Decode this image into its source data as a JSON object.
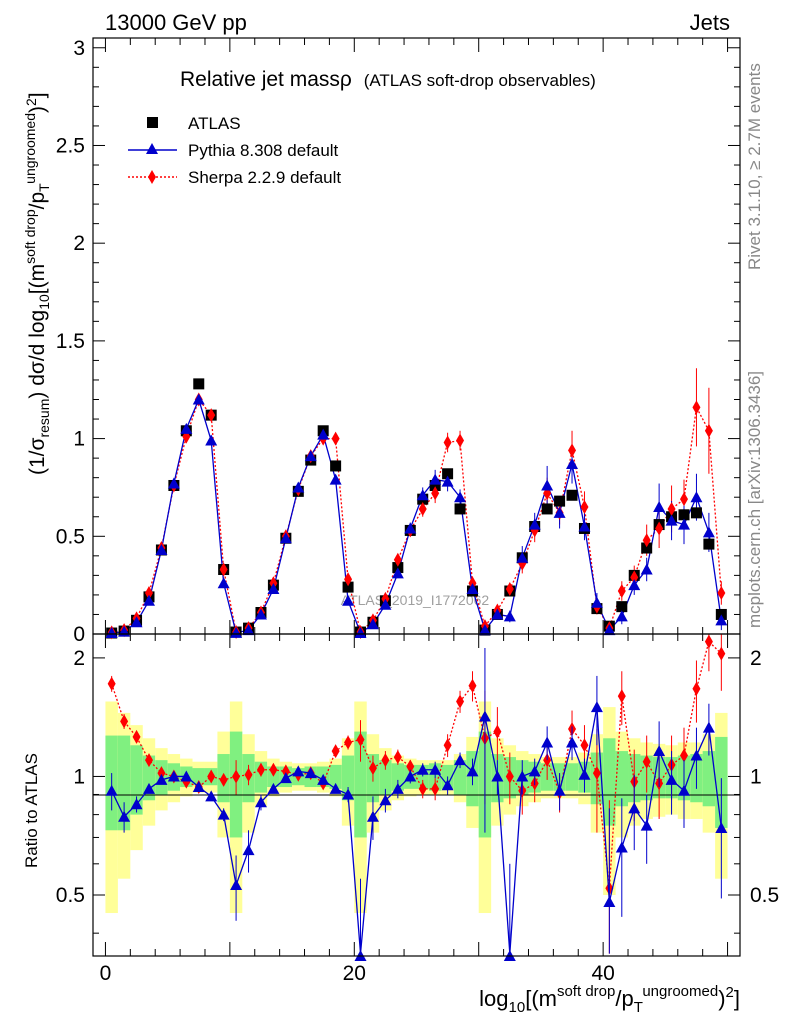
{
  "header": {
    "left": "13000 GeV pp",
    "right": "Jets"
  },
  "side": {
    "rivet": "Rivet 3.1.10, ≥ 2.7M events",
    "mcplots": "mcplots.cern.ch [arXiv:1306.3436]"
  },
  "watermark": "ATLAS_2019_I1772062",
  "chart_data": {
    "type": "scatter",
    "title": "Relative jet massρ",
    "subtitle": "(ATLAS soft-drop observables)",
    "ylabel_main": "(1/σresum) dσ/d log10[(m^soft drop/pT^ungroomed)²]",
    "ylabel_ratio": "Ratio to ATLAS",
    "xlabel": "log10[(m^soft drop/pT^ungroomed)²]",
    "xlim": [
      -1,
      51
    ],
    "ylim_main": [
      0,
      3.05
    ],
    "ylim_ratio": [
      0.35,
      2.3
    ],
    "ylog_ratio": true,
    "grid": false,
    "legend_position": "top-left",
    "main_ticks": [
      "0",
      "0.5",
      "1",
      "1.5",
      "2",
      "2.5",
      "3"
    ],
    "ratio_ticks": [
      "0.5",
      "1",
      "2"
    ],
    "x_ticks": [
      "0",
      "20",
      "40"
    ],
    "x": [
      0.5,
      1.5,
      2.5,
      3.5,
      4.5,
      5.5,
      6.5,
      7.5,
      8.5,
      9.5,
      10.5,
      11.5,
      12.5,
      13.5,
      14.5,
      15.5,
      16.5,
      17.5,
      18.5,
      19.5,
      20.5,
      21.5,
      22.5,
      23.5,
      24.5,
      25.5,
      26.5,
      27.5,
      28.5,
      29.5,
      30.5,
      31.5,
      32.5,
      33.5,
      34.5,
      35.5,
      36.5,
      37.5,
      38.5,
      39.5,
      40.5,
      41.5,
      42.5,
      43.5,
      44.5,
      45.5,
      46.5,
      47.5,
      48.5,
      49.5
    ],
    "series": [
      {
        "name": "ATLAS",
        "color": "#000000",
        "marker": "square",
        "values": [
          0.005,
          0.015,
          0.07,
          0.19,
          0.43,
          0.76,
          1.04,
          1.28,
          1.12,
          0.33,
          0.01,
          0.03,
          0.11,
          0.25,
          0.49,
          0.73,
          0.89,
          1.04,
          0.86,
          0.24,
          0.01,
          0.06,
          0.17,
          0.34,
          0.53,
          0.69,
          0.76,
          0.82,
          0.64,
          0.22,
          0.02,
          0.1,
          0.22,
          0.39,
          0.55,
          0.64,
          0.68,
          0.71,
          0.54,
          0.13,
          0.04,
          0.14,
          0.3,
          0.44,
          0.56,
          0.6,
          0.61,
          0.62,
          0.46,
          0.1
        ],
        "ratio_band_inner": [
          0.27,
          0.27,
          0.2,
          0.13,
          0.1,
          0.08,
          0.06,
          0.05,
          0.05,
          0.14,
          0.3,
          0.14,
          0.09,
          0.06,
          0.06,
          0.05,
          0.06,
          0.06,
          0.07,
          0.13,
          0.3,
          0.14,
          0.1,
          0.08,
          0.07,
          0.07,
          0.08,
          0.07,
          0.1,
          0.16,
          0.3,
          0.14,
          0.12,
          0.1,
          0.09,
          0.08,
          0.08,
          0.08,
          0.09,
          0.15,
          0.25,
          0.16,
          0.14,
          0.13,
          0.12,
          0.12,
          0.13,
          0.14,
          0.16,
          0.26
        ],
        "ratio_band_outer": [
          0.55,
          0.45,
          0.35,
          0.25,
          0.18,
          0.14,
          0.11,
          0.09,
          0.09,
          0.3,
          0.55,
          0.28,
          0.16,
          0.11,
          0.09,
          0.08,
          0.08,
          0.09,
          0.11,
          0.25,
          0.55,
          0.28,
          0.18,
          0.13,
          0.11,
          0.1,
          0.1,
          0.1,
          0.14,
          0.26,
          0.55,
          0.25,
          0.2,
          0.16,
          0.14,
          0.12,
          0.12,
          0.12,
          0.15,
          0.28,
          0.5,
          0.3,
          0.25,
          0.22,
          0.21,
          0.2,
          0.22,
          0.22,
          0.28,
          0.45
        ]
      },
      {
        "name": "Pythia 8.308 default",
        "color": "#0000cc",
        "marker": "triangle",
        "line": "solid",
        "values": [
          0.005,
          0.012,
          0.06,
          0.17,
          0.43,
          0.77,
          1.05,
          1.2,
          0.99,
          0.26,
          0.006,
          0.02,
          0.1,
          0.23,
          0.49,
          0.75,
          0.91,
          1.02,
          0.79,
          0.17,
          0.005,
          0.05,
          0.15,
          0.31,
          0.54,
          0.71,
          0.79,
          0.78,
          0.7,
          0.23,
          0.02,
          0.1,
          0.09,
          0.39,
          0.56,
          0.76,
          0.62,
          0.87,
          0.55,
          0.16,
          0.02,
          0.09,
          0.25,
          0.33,
          0.65,
          0.58,
          0.56,
          0.7,
          0.52,
          0.07
        ],
        "errors": [
          0,
          0,
          0.005,
          0.01,
          0.01,
          0.01,
          0.015,
          0.02,
          0.02,
          0.01,
          0,
          0,
          0.005,
          0.01,
          0.01,
          0.01,
          0.015,
          0.02,
          0.02,
          0.01,
          0,
          0,
          0.01,
          0.02,
          0.03,
          0.04,
          0.05,
          0.05,
          0.04,
          0.02,
          0.01,
          0.02,
          0.03,
          0.06,
          0.06,
          0.1,
          0.08,
          0.1,
          0.07,
          0.05,
          0.02,
          0.04,
          0.05,
          0.06,
          0.12,
          0.1,
          0.1,
          0.12,
          0.1,
          0.05
        ],
        "ratio": [
          0.92,
          0.79,
          0.85,
          0.93,
          0.98,
          1.0,
          1.0,
          0.94,
          0.89,
          0.8,
          0.53,
          0.65,
          0.86,
          0.93,
          0.99,
          1.03,
          1.02,
          0.98,
          0.93,
          0.9,
          0.35,
          0.79,
          0.87,
          0.93,
          1.0,
          1.04,
          1.04,
          0.95,
          1.1,
          1.03,
          1.42,
          1.0,
          0.35,
          1.0,
          1.03,
          1.22,
          0.92,
          1.22,
          1.01,
          1.5,
          0.48,
          0.66,
          0.83,
          0.75,
          1.16,
          0.98,
          0.92,
          1.13,
          1.33,
          0.74
        ],
        "ratio_errors": [
          0.1,
          0.07,
          0.04,
          0.02,
          0.01,
          0.01,
          0.01,
          0.02,
          0.02,
          0.03,
          0.1,
          0.08,
          0.04,
          0.02,
          0.01,
          0.01,
          0.01,
          0.02,
          0.02,
          0.04,
          0.2,
          0.1,
          0.06,
          0.05,
          0.04,
          0.04,
          0.05,
          0.05,
          0.05,
          0.08,
          0.7,
          0.1,
          0.25,
          0.1,
          0.08,
          0.12,
          0.1,
          0.12,
          0.1,
          0.3,
          0.35,
          0.22,
          0.18,
          0.15,
          0.22,
          0.18,
          0.18,
          0.2,
          0.2,
          0.25
        ]
      },
      {
        "name": "Sherpa 2.2.9 default",
        "color": "#ff0000",
        "marker": "diamond",
        "line": "dotted",
        "values": [
          0.008,
          0.02,
          0.08,
          0.21,
          0.44,
          0.76,
          1.01,
          1.2,
          1.12,
          0.33,
          0.01,
          0.03,
          0.11,
          0.26,
          0.5,
          0.74,
          0.91,
          1.0,
          1.0,
          0.28,
          0.01,
          0.07,
          0.18,
          0.38,
          0.53,
          0.64,
          0.72,
          0.98,
          0.99,
          0.26,
          0.04,
          0.12,
          0.23,
          0.36,
          0.53,
          0.72,
          0.62,
          0.94,
          0.65,
          0.14,
          0.03,
          0.22,
          0.29,
          0.48,
          0.54,
          0.64,
          0.69,
          1.16,
          1.04,
          0.21
        ],
        "errors": [
          0,
          0,
          0.005,
          0.01,
          0.01,
          0.01,
          0.015,
          0.02,
          0.02,
          0.01,
          0,
          0,
          0.005,
          0.01,
          0.01,
          0.01,
          0.015,
          0.02,
          0.02,
          0.01,
          0,
          0,
          0.01,
          0.02,
          0.03,
          0.04,
          0.05,
          0.05,
          0.05,
          0.02,
          0.01,
          0.02,
          0.03,
          0.05,
          0.06,
          0.08,
          0.06,
          0.1,
          0.08,
          0.04,
          0.02,
          0.05,
          0.06,
          0.08,
          0.1,
          0.12,
          0.1,
          0.2,
          0.22,
          0.06
        ],
        "ratio": [
          1.72,
          1.38,
          1.26,
          1.1,
          1.02,
          1.0,
          0.97,
          0.94,
          1.0,
          0.98,
          1.0,
          1.01,
          1.04,
          1.04,
          1.03,
          1.01,
          1.02,
          0.96,
          1.16,
          1.22,
          1.24,
          1.05,
          1.1,
          1.12,
          1.06,
          0.93,
          0.93,
          1.2,
          1.55,
          1.7,
          1.25,
          1.3,
          1.0,
          0.92,
          0.96,
          1.1,
          0.91,
          1.32,
          1.2,
          1.02,
          0.52,
          1.6,
          0.97,
          1.09,
          0.96,
          1.07,
          1.13,
          1.67,
          2.2,
          2.05
        ],
        "ratio_errors": [
          0.08,
          0.06,
          0.04,
          0.03,
          0.02,
          0.01,
          0.01,
          0.02,
          0.02,
          0.03,
          0.1,
          0.06,
          0.04,
          0.02,
          0.02,
          0.01,
          0.01,
          0.02,
          0.03,
          0.05,
          0.15,
          0.08,
          0.06,
          0.05,
          0.04,
          0.05,
          0.06,
          0.08,
          0.1,
          0.15,
          0.4,
          0.2,
          0.15,
          0.12,
          0.1,
          0.12,
          0.1,
          0.15,
          0.15,
          0.3,
          0.35,
          0.25,
          0.2,
          0.18,
          0.18,
          0.2,
          0.2,
          0.3,
          0.35,
          0.4
        ]
      }
    ]
  }
}
